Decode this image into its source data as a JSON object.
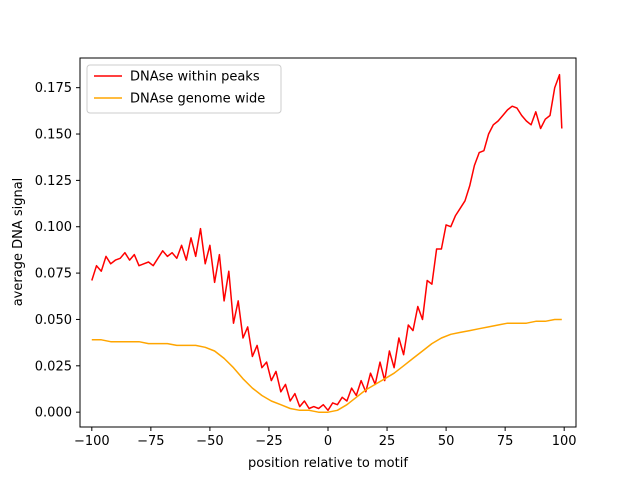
{
  "chart_data": {
    "type": "line",
    "title": "",
    "xlabel": "position relative to motif",
    "ylabel": "average DNA signal",
    "xlim": [
      -105,
      105
    ],
    "ylim": [
      -0.008,
      0.191
    ],
    "xticks": [
      -100,
      -75,
      -50,
      -25,
      0,
      25,
      50,
      75,
      100
    ],
    "xtick_labels": [
      "−100",
      "−75",
      "−50",
      "−25",
      "0",
      "25",
      "50",
      "75",
      "100"
    ],
    "yticks": [
      0.0,
      0.025,
      0.05,
      0.075,
      0.1,
      0.125,
      0.15,
      0.175
    ],
    "ytick_labels": [
      "0.000",
      "0.025",
      "0.050",
      "0.075",
      "0.100",
      "0.125",
      "0.150",
      "0.175"
    ],
    "grid": false,
    "legend_position": "upper-left",
    "series": [
      {
        "name": "DNAse within peaks",
        "color": "#ff0000",
        "x": [
          -100,
          -98,
          -96,
          -94,
          -92,
          -90,
          -88,
          -86,
          -84,
          -82,
          -80,
          -78,
          -76,
          -74,
          -72,
          -70,
          -68,
          -66,
          -64,
          -62,
          -60,
          -58,
          -56,
          -54,
          -52,
          -50,
          -48,
          -46,
          -44,
          -42,
          -40,
          -38,
          -36,
          -34,
          -32,
          -30,
          -28,
          -26,
          -24,
          -22,
          -20,
          -18,
          -16,
          -14,
          -12,
          -10,
          -8,
          -6,
          -4,
          -2,
          0,
          2,
          4,
          6,
          8,
          10,
          12,
          14,
          16,
          18,
          20,
          22,
          24,
          26,
          28,
          30,
          32,
          34,
          36,
          38,
          40,
          42,
          44,
          46,
          48,
          50,
          52,
          54,
          56,
          58,
          60,
          62,
          64,
          66,
          68,
          70,
          72,
          74,
          76,
          78,
          80,
          82,
          84,
          86,
          88,
          90,
          92,
          94,
          96,
          98,
          99
        ],
        "values": [
          0.071,
          0.079,
          0.076,
          0.084,
          0.08,
          0.082,
          0.083,
          0.086,
          0.082,
          0.085,
          0.079,
          0.08,
          0.081,
          0.079,
          0.083,
          0.087,
          0.084,
          0.086,
          0.083,
          0.09,
          0.082,
          0.094,
          0.084,
          0.099,
          0.08,
          0.09,
          0.07,
          0.085,
          0.06,
          0.076,
          0.048,
          0.06,
          0.04,
          0.046,
          0.03,
          0.036,
          0.024,
          0.027,
          0.017,
          0.022,
          0.011,
          0.015,
          0.006,
          0.01,
          0.003,
          0.006,
          0.002,
          0.003,
          0.002,
          0.004,
          0.001,
          0.005,
          0.004,
          0.008,
          0.006,
          0.013,
          0.009,
          0.017,
          0.011,
          0.021,
          0.015,
          0.027,
          0.017,
          0.033,
          0.024,
          0.04,
          0.031,
          0.047,
          0.044,
          0.057,
          0.05,
          0.071,
          0.069,
          0.088,
          0.088,
          0.101,
          0.1,
          0.106,
          0.11,
          0.114,
          0.122,
          0.133,
          0.14,
          0.141,
          0.15,
          0.155,
          0.157,
          0.16,
          0.163,
          0.165,
          0.164,
          0.16,
          0.157,
          0.155,
          0.162,
          0.153,
          0.158,
          0.16,
          0.175,
          0.182,
          0.153
        ]
      },
      {
        "name": "DNAse genome wide",
        "color": "#ffa500",
        "x": [
          -100,
          -96,
          -92,
          -88,
          -84,
          -80,
          -76,
          -72,
          -68,
          -64,
          -60,
          -56,
          -52,
          -48,
          -44,
          -40,
          -36,
          -32,
          -28,
          -24,
          -20,
          -16,
          -12,
          -8,
          -4,
          0,
          4,
          8,
          12,
          16,
          20,
          24,
          28,
          32,
          36,
          40,
          44,
          48,
          52,
          56,
          60,
          64,
          68,
          72,
          76,
          80,
          84,
          88,
          92,
          96,
          99
        ],
        "values": [
          0.039,
          0.039,
          0.038,
          0.038,
          0.038,
          0.038,
          0.037,
          0.037,
          0.037,
          0.036,
          0.036,
          0.036,
          0.035,
          0.033,
          0.029,
          0.024,
          0.018,
          0.013,
          0.009,
          0.006,
          0.004,
          0.002,
          0.001,
          0.001,
          0.0,
          0.0,
          0.001,
          0.004,
          0.008,
          0.012,
          0.015,
          0.018,
          0.021,
          0.025,
          0.029,
          0.033,
          0.037,
          0.04,
          0.042,
          0.043,
          0.044,
          0.045,
          0.046,
          0.047,
          0.048,
          0.048,
          0.048,
          0.049,
          0.049,
          0.05,
          0.05
        ]
      }
    ]
  }
}
